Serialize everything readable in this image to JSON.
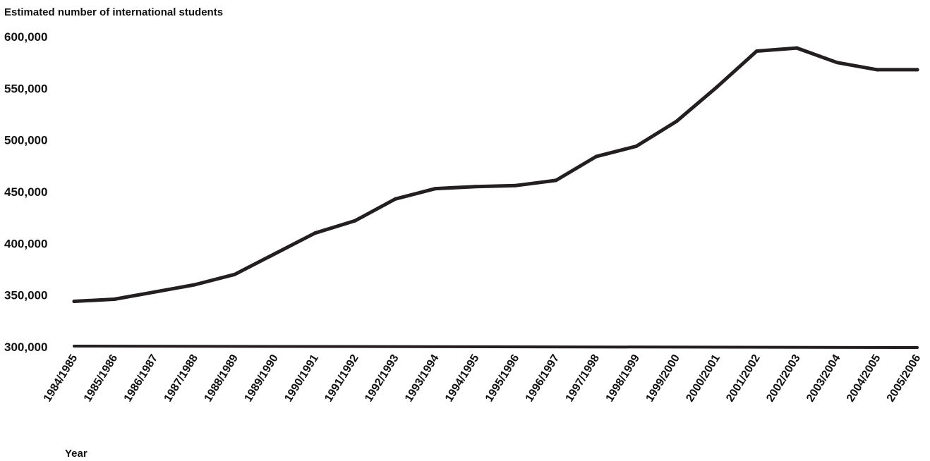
{
  "chart_data": {
    "type": "line",
    "title": "",
    "ylabel": "Estimated number of international students",
    "xlabel": "Year",
    "ylim": [
      300000,
      600000
    ],
    "yticks": [
      300000,
      350000,
      400000,
      450000,
      500000,
      550000,
      600000
    ],
    "ytick_labels": [
      "300,000",
      "350,000",
      "400,000",
      "450,000",
      "500,000",
      "550,000",
      "600,000"
    ],
    "categories": [
      "1984/1985",
      "1985/1986",
      "1986/1987",
      "1987/1988",
      "1988/1989",
      "1989/1990",
      "1990/1991",
      "1991/1992",
      "1992/1993",
      "1993/1994",
      "1994/1995",
      "1995/1996",
      "1996/1997",
      "1997/1998",
      "1998/1999",
      "1999/2000",
      "2000/2001",
      "2001/2002",
      "2002/2003",
      "2003/2004",
      "2004/2005",
      "2005/2006"
    ],
    "series": [
      {
        "values": [
          344000,
          346000,
          353000,
          360000,
          370000,
          390000,
          410000,
          422000,
          443000,
          453000,
          455000,
          456000,
          461000,
          484000,
          494000,
          518000,
          551000,
          586000,
          589000,
          575000,
          568000,
          568000
        ]
      }
    ],
    "grid": false,
    "line_color": "#231f20"
  }
}
